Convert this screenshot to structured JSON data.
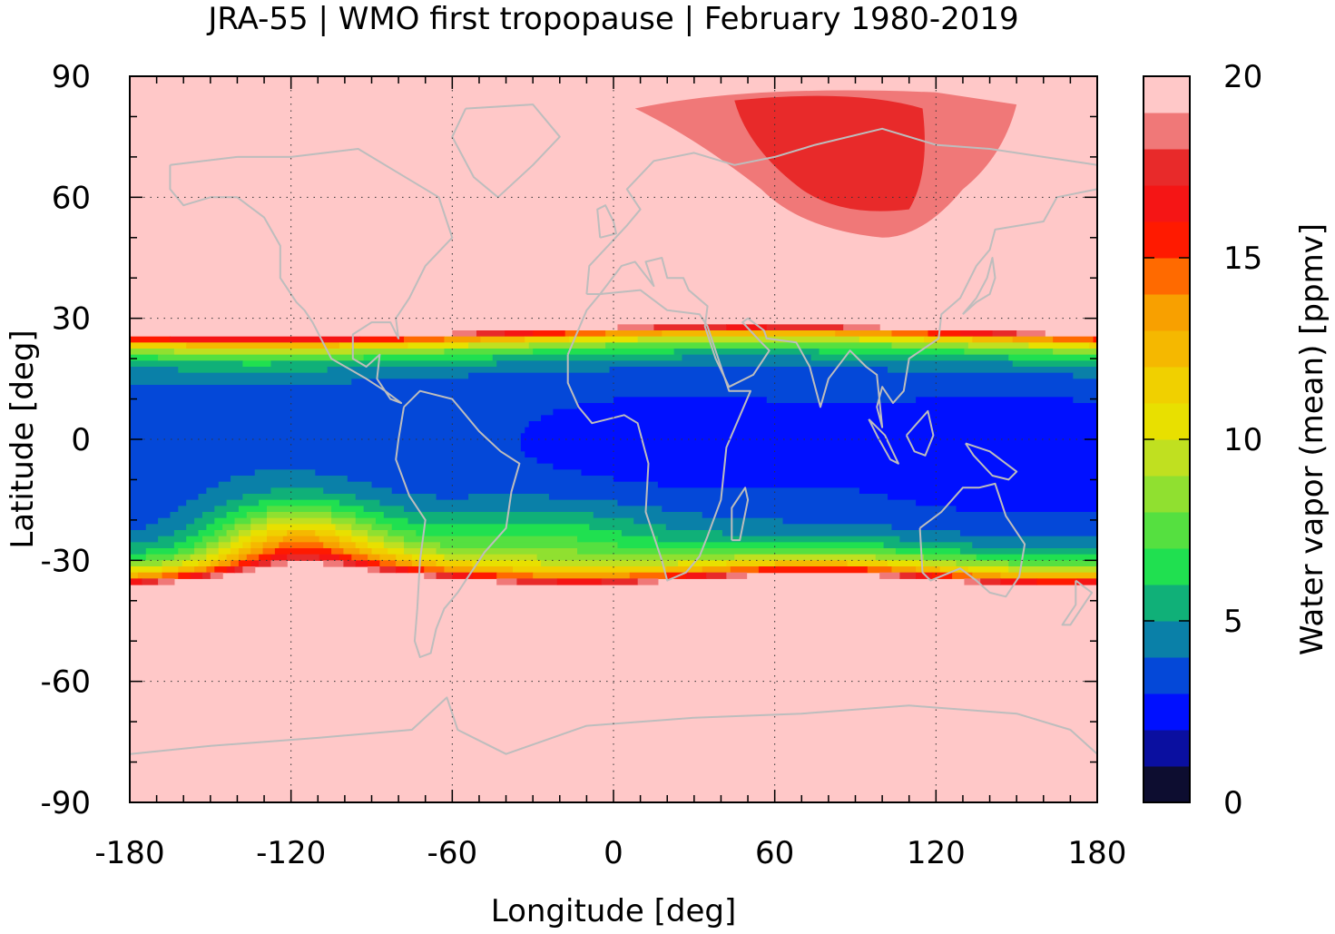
{
  "chart_data": {
    "type": "heatmap",
    "title": "JRA-55 | WMO first tropopause | February 1980-2019",
    "xlabel": "Longitude [deg]",
    "ylabel": "Latitude [deg]",
    "colorbar_label": "Water vapor (mean) [ppmv]",
    "xlim": [
      -180,
      180
    ],
    "ylim": [
      -90,
      90
    ],
    "xticks": [
      "-180",
      "-120",
      "-60",
      "0",
      "60",
      "120",
      "180"
    ],
    "yticks": [
      "-90",
      "-60",
      "-30",
      "0",
      "30",
      "60",
      "90"
    ],
    "colorbar": {
      "range": [
        0,
        20
      ],
      "ticks": [
        "0",
        "5",
        "10",
        "15",
        "20"
      ],
      "levels": [
        0,
        1,
        2,
        3,
        4,
        5,
        6,
        7,
        8,
        9,
        10,
        11,
        12,
        13,
        14,
        15,
        16,
        17,
        18,
        19,
        20
      ],
      "colors": [
        "#0d0d30",
        "#0a0fa0",
        "#0010ff",
        "#0448d8",
        "#0a80a8",
        "#10b078",
        "#20e050",
        "#55e040",
        "#90e030",
        "#c0e020",
        "#e8e000",
        "#f0d000",
        "#f5b800",
        "#f8a000",
        "#ff6a00",
        "#ff1a00",
        "#f51515",
        "#e82a2a",
        "#f07878",
        "#ffc8c8"
      ]
    },
    "grid": true,
    "features": {
      "coastlines": true,
      "coastline_color": "#bdbdbd",
      "background_value": 20
    },
    "fields": [
      {
        "name": "tropical moist-bound north edge",
        "lat_north_by_lon": [
          [
            -180,
            26
          ],
          [
            -120,
            27
          ],
          [
            -60,
            28
          ],
          [
            0,
            28
          ],
          [
            60,
            28
          ],
          [
            120,
            26
          ],
          [
            180,
            26
          ]
        ]
      },
      {
        "name": "tropical moist-bound south edge",
        "lat_south_by_lon": [
          [
            -180,
            -35
          ],
          [
            -120,
            -33
          ],
          [
            -60,
            -35
          ],
          [
            0,
            -37
          ],
          [
            60,
            -37
          ],
          [
            120,
            -35
          ],
          [
            180,
            -35
          ]
        ]
      },
      {
        "name": "Eurasian high-vapor region",
        "approx_lon_range": [
          5,
          160
        ],
        "approx_lat_range": [
          48,
          85
        ],
        "value_range_ppmv": [
          16,
          19
        ]
      },
      {
        "name": "South Pacific maximum",
        "approx_lon_range": [
          -135,
          -100
        ],
        "approx_lat_range": [
          -35,
          -25
        ],
        "value_range_ppmv": [
          15,
          17
        ]
      }
    ]
  }
}
